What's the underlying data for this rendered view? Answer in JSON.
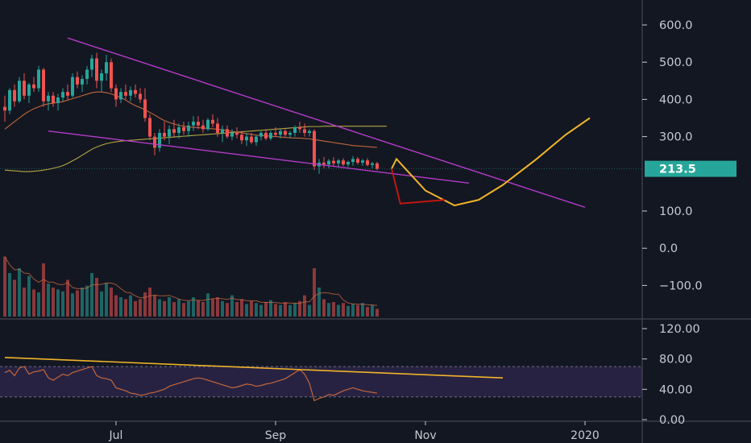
{
  "chart_data": {
    "type": "candlestick",
    "price_axis": {
      "ticks": [
        {
          "value": 600,
          "label": "600.0"
        },
        {
          "value": 500,
          "label": "500.0"
        },
        {
          "value": 400,
          "label": "400.0"
        },
        {
          "value": 300,
          "label": "300.0"
        },
        {
          "value": 100,
          "label": "100.0"
        },
        {
          "value": 0,
          "label": "0.0"
        },
        {
          "value": -100,
          "label": "−100.0"
        }
      ],
      "last_price": {
        "value": 213.5,
        "label": "213.5"
      }
    },
    "rsi_axis": {
      "ticks": [
        {
          "value": 120,
          "label": "120.00"
        },
        {
          "value": 80,
          "label": "80.00"
        },
        {
          "value": 40,
          "label": "40.00"
        },
        {
          "value": 0,
          "label": "0.00"
        }
      ],
      "band": [
        30,
        70
      ]
    },
    "x_axis": {
      "labels": [
        {
          "label": "Jul",
          "index": 23
        },
        {
          "label": "Sep",
          "index": 56
        },
        {
          "label": "Nov",
          "index": 87
        },
        {
          "label": "2020",
          "index": 120
        }
      ]
    },
    "colors": {
      "up": "#26a69a",
      "down": "#ef5350",
      "trendline": "#b53bc8",
      "projection": "#f0b429",
      "bear_projection": "#c0170e",
      "ma_slow": "#b5a642",
      "ma_fast": "#c2673c",
      "rsi_line": "#c2673c",
      "rsi_band": "#2d2448",
      "badge": "#26a69a"
    },
    "candles": [
      [
        380,
        410,
        340,
        370
      ],
      [
        370,
        430,
        360,
        425
      ],
      [
        425,
        440,
        380,
        395
      ],
      [
        395,
        460,
        390,
        450
      ],
      [
        450,
        470,
        400,
        410
      ],
      [
        410,
        445,
        390,
        440
      ],
      [
        440,
        460,
        420,
        430
      ],
      [
        430,
        490,
        420,
        480
      ],
      [
        480,
        485,
        380,
        395
      ],
      [
        395,
        420,
        370,
        410
      ],
      [
        410,
        420,
        380,
        390
      ],
      [
        390,
        415,
        370,
        405
      ],
      [
        405,
        430,
        395,
        420
      ],
      [
        420,
        440,
        400,
        410
      ],
      [
        410,
        470,
        405,
        460
      ],
      [
        460,
        475,
        430,
        440
      ],
      [
        440,
        465,
        420,
        455
      ],
      [
        455,
        490,
        440,
        480
      ],
      [
        480,
        520,
        460,
        510
      ],
      [
        510,
        525,
        430,
        450
      ],
      [
        450,
        480,
        420,
        470
      ],
      [
        470,
        520,
        450,
        500
      ],
      [
        500,
        510,
        420,
        430
      ],
      [
        430,
        440,
        380,
        400
      ],
      [
        400,
        430,
        390,
        420
      ],
      [
        420,
        440,
        400,
        410
      ],
      [
        410,
        435,
        395,
        425
      ],
      [
        425,
        440,
        405,
        415
      ],
      [
        415,
        430,
        390,
        400
      ],
      [
        400,
        430,
        340,
        350
      ],
      [
        350,
        360,
        290,
        300
      ],
      [
        300,
        310,
        250,
        270
      ],
      [
        270,
        320,
        260,
        310
      ],
      [
        310,
        340,
        290,
        300
      ],
      [
        300,
        330,
        280,
        320
      ],
      [
        320,
        345,
        300,
        310
      ],
      [
        310,
        335,
        295,
        325
      ],
      [
        325,
        340,
        305,
        315
      ],
      [
        315,
        340,
        300,
        330
      ],
      [
        330,
        355,
        315,
        340
      ],
      [
        340,
        355,
        320,
        330
      ],
      [
        330,
        345,
        310,
        320
      ],
      [
        320,
        350,
        315,
        345
      ],
      [
        345,
        360,
        325,
        335
      ],
      [
        335,
        350,
        300,
        310
      ],
      [
        310,
        330,
        285,
        320
      ],
      [
        320,
        330,
        295,
        300
      ],
      [
        300,
        320,
        290,
        310
      ],
      [
        310,
        325,
        295,
        305
      ],
      [
        305,
        315,
        280,
        290
      ],
      [
        290,
        310,
        275,
        300
      ],
      [
        300,
        310,
        280,
        285
      ],
      [
        285,
        305,
        275,
        300
      ],
      [
        300,
        315,
        290,
        310
      ],
      [
        310,
        320,
        290,
        295
      ],
      [
        295,
        315,
        290,
        310
      ],
      [
        310,
        325,
        300,
        305
      ],
      [
        305,
        320,
        295,
        315
      ],
      [
        315,
        320,
        300,
        305
      ],
      [
        305,
        315,
        295,
        310
      ],
      [
        310,
        330,
        300,
        325
      ],
      [
        325,
        340,
        310,
        320
      ],
      [
        320,
        335,
        300,
        310
      ],
      [
        310,
        320,
        300,
        315
      ],
      [
        315,
        320,
        210,
        220
      ],
      [
        220,
        240,
        200,
        230
      ],
      [
        230,
        245,
        215,
        225
      ],
      [
        225,
        240,
        215,
        235
      ],
      [
        235,
        245,
        220,
        228
      ],
      [
        228,
        240,
        218,
        236
      ],
      [
        236,
        242,
        220,
        225
      ],
      [
        225,
        235,
        218,
        232
      ],
      [
        232,
        248,
        222,
        240
      ],
      [
        240,
        245,
        225,
        230
      ],
      [
        230,
        240,
        222,
        236
      ],
      [
        236,
        242,
        220,
        224
      ],
      [
        224,
        232,
        215,
        228
      ],
      [
        228,
        232,
        210,
        213.5
      ]
    ],
    "volume": [
      62,
      45,
      38,
      50,
      30,
      42,
      28,
      25,
      55,
      34,
      30,
      28,
      26,
      38,
      24,
      27,
      30,
      32,
      45,
      40,
      26,
      35,
      30,
      22,
      20,
      18,
      22,
      16,
      18,
      25,
      30,
      22,
      18,
      16,
      20,
      15,
      18,
      14,
      16,
      20,
      17,
      15,
      24,
      18,
      20,
      16,
      14,
      22,
      15,
      18,
      13,
      16,
      14,
      12,
      15,
      17,
      13,
      12,
      15,
      12,
      14,
      16,
      22,
      12,
      50,
      30,
      18,
      14,
      15,
      12,
      14,
      11,
      13,
      12,
      14,
      10,
      12,
      8
    ],
    "ma_slow": [
      210,
      209,
      208,
      207,
      206,
      206,
      207,
      208,
      210,
      212,
      215,
      218,
      222,
      228,
      235,
      242,
      250,
      258,
      266,
      272,
      277,
      281,
      284,
      286,
      288,
      289,
      290,
      291,
      292,
      293,
      294,
      295,
      296,
      297,
      298,
      299,
      300,
      301,
      302,
      303,
      304,
      305,
      306,
      307,
      308,
      309,
      310,
      311,
      312,
      313,
      314,
      315,
      316,
      317,
      318,
      319,
      320,
      321,
      322,
      323,
      324,
      325,
      326,
      327,
      327,
      327,
      328,
      328,
      328,
      328,
      328,
      328,
      328,
      328,
      328,
      328,
      328,
      328
    ],
    "ma_fast": [
      320,
      330,
      340,
      350,
      360,
      368,
      375,
      380,
      385,
      388,
      390,
      392,
      394,
      398,
      402,
      406,
      410,
      414,
      418,
      420,
      420,
      418,
      415,
      410,
      405,
      398,
      390,
      383,
      378,
      372,
      365,
      358,
      350,
      343,
      338,
      334,
      330,
      328,
      326,
      325,
      324,
      323,
      322,
      321,
      320,
      318,
      316,
      314,
      312,
      310,
      308,
      306,
      304,
      303,
      302,
      301,
      300,
      299,
      298,
      297,
      296,
      296,
      295,
      294,
      292,
      290,
      288,
      286,
      284,
      282,
      280,
      278,
      276,
      275,
      274,
      273,
      272,
      271
    ],
    "rsi": [
      62,
      65,
      58,
      68,
      70,
      60,
      63,
      64,
      66,
      55,
      52,
      56,
      60,
      58,
      62,
      64,
      66,
      68,
      70,
      58,
      55,
      54,
      52,
      42,
      40,
      38,
      35,
      34,
      32,
      33,
      35,
      36,
      38,
      40,
      44,
      46,
      48,
      50,
      52,
      54,
      55,
      54,
      52,
      50,
      48,
      46,
      44,
      42,
      43,
      45,
      47,
      46,
      44,
      45,
      47,
      48,
      50,
      52,
      54,
      58,
      62,
      66,
      60,
      48,
      25,
      28,
      30,
      33,
      32,
      35,
      38,
      40,
      42,
      40,
      38,
      37,
      36,
      35
    ],
    "trendlines": [
      {
        "x1": 12,
        "y1": 560,
        "x2": 107,
        "y2": 107,
        "color": "trendline"
      },
      {
        "x1": 8,
        "y1": 320,
        "x2": 82,
        "y2": 175,
        "color": "trendline"
      },
      {
        "x1": 79,
        "y1": 210,
        "x2": 99,
        "y2": 115,
        "color": "projection"
      },
      {
        "x1": 99,
        "y1": 115,
        "x2": 120,
        "y2": 345,
        "color": "projection"
      }
    ],
    "projection_path": [
      [
        80,
        213.5
      ],
      [
        81,
        240
      ],
      [
        87,
        155
      ],
      [
        93,
        115
      ],
      [
        98,
        130
      ],
      [
        103,
        170
      ],
      [
        110,
        240
      ],
      [
        116,
        305
      ],
      [
        121,
        350
      ]
    ],
    "bear_projection": [
      [
        80,
        213.5
      ],
      [
        81.8,
        120
      ],
      [
        91,
        130
      ]
    ],
    "rsi_trendline": [
      [
        0,
        82
      ],
      [
        103,
        55
      ]
    ]
  }
}
